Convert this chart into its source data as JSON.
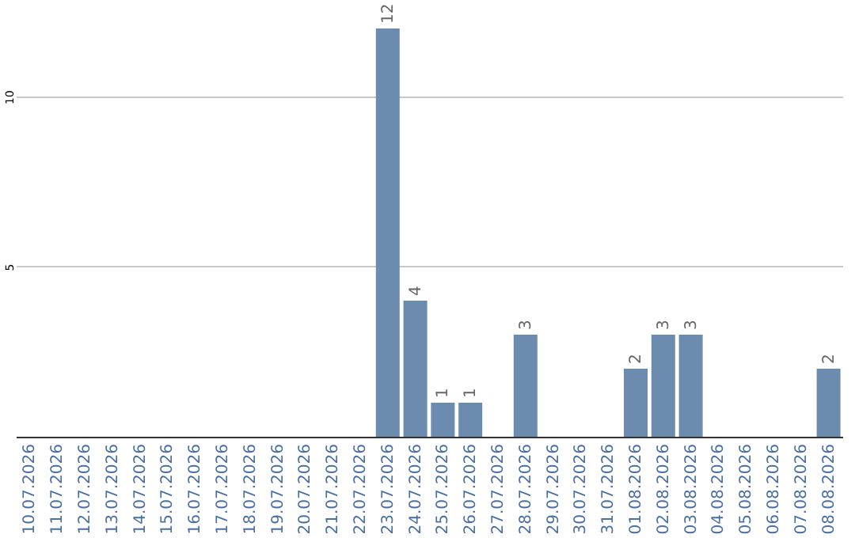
{
  "chart_data": {
    "type": "bar",
    "categories": [
      "10.07.2026",
      "11.07.2026",
      "12.07.2026",
      "13.07.2026",
      "14.07.2026",
      "15.07.2026",
      "16.07.2026",
      "17.07.2026",
      "18.07.2026",
      "19.07.2026",
      "20.07.2026",
      "21.07.2026",
      "22.07.2026",
      "23.07.2026",
      "24.07.2026",
      "25.07.2026",
      "26.07.2026",
      "27.07.2026",
      "28.07.2026",
      "29.07.2026",
      "30.07.2026",
      "31.07.2026",
      "01.08.2026",
      "02.08.2026",
      "03.08.2026",
      "04.08.2026",
      "05.08.2026",
      "06.08.2026",
      "07.08.2026",
      "08.08.2026"
    ],
    "values": [
      0,
      0,
      0,
      0,
      0,
      0,
      0,
      0,
      0,
      0,
      0,
      0,
      0,
      12,
      4,
      1,
      1,
      0,
      3,
      0,
      0,
      0,
      2,
      3,
      3,
      0,
      0,
      0,
      0,
      2
    ],
    "value_labels": [
      null,
      null,
      null,
      null,
      null,
      null,
      null,
      null,
      null,
      null,
      null,
      null,
      null,
      "12",
      "4",
      "1",
      "1",
      null,
      "3",
      null,
      null,
      null,
      "2",
      "3",
      "3",
      null,
      null,
      null,
      null,
      "2"
    ],
    "color": "#6b8cae",
    "ylim": [
      0,
      12
    ],
    "yticks": [
      5,
      10
    ],
    "grid": "y"
  }
}
